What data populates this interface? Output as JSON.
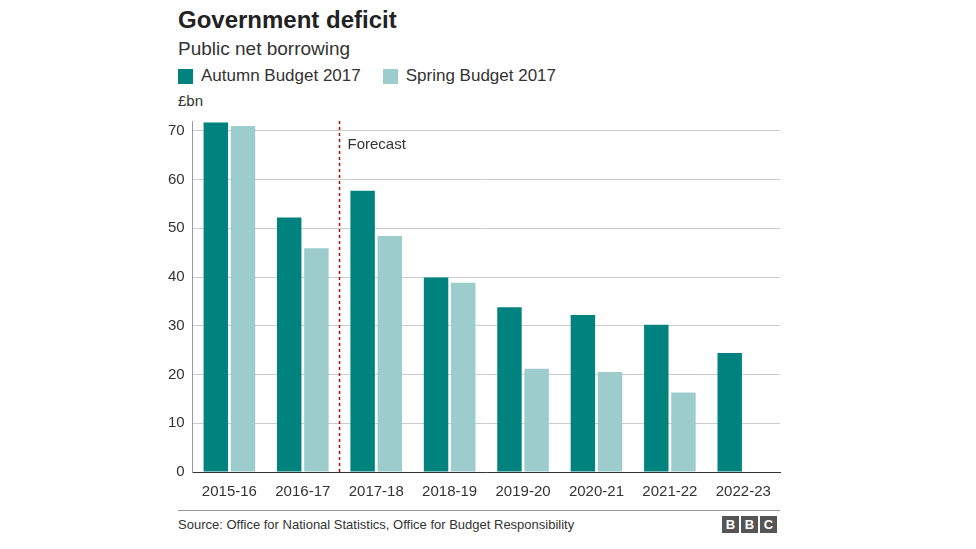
{
  "chart_data": {
    "type": "bar",
    "title": "Government deficit",
    "subtitle": "Public net borrowing",
    "ylabel": "£bn",
    "categories": [
      "2015-16",
      "2016-17",
      "2017-18",
      "2018-19",
      "2019-20",
      "2020-21",
      "2021-22",
      "2022-23"
    ],
    "series": [
      {
        "name": "Autumn Budget 2017",
        "color": "#00827f",
        "values": [
          71.7,
          52.2,
          57.7,
          39.9,
          33.8,
          32.2,
          30.2,
          24.4
        ]
      },
      {
        "name": "Spring Budget 2017",
        "color": "#9ccccc",
        "values": [
          71.0,
          45.9,
          48.4,
          38.8,
          21.2,
          20.5,
          16.3,
          null
        ]
      }
    ],
    "ylim": [
      0,
      72
    ],
    "yticks": [
      0,
      10,
      20,
      30,
      40,
      50,
      60,
      70
    ],
    "grid": true,
    "legend": "top",
    "annotation": {
      "text": "Forecast",
      "before": "2017-18"
    },
    "source": "Source: Office for National Statistics, Office for Budget Responsibility",
    "logo": "BBC"
  }
}
